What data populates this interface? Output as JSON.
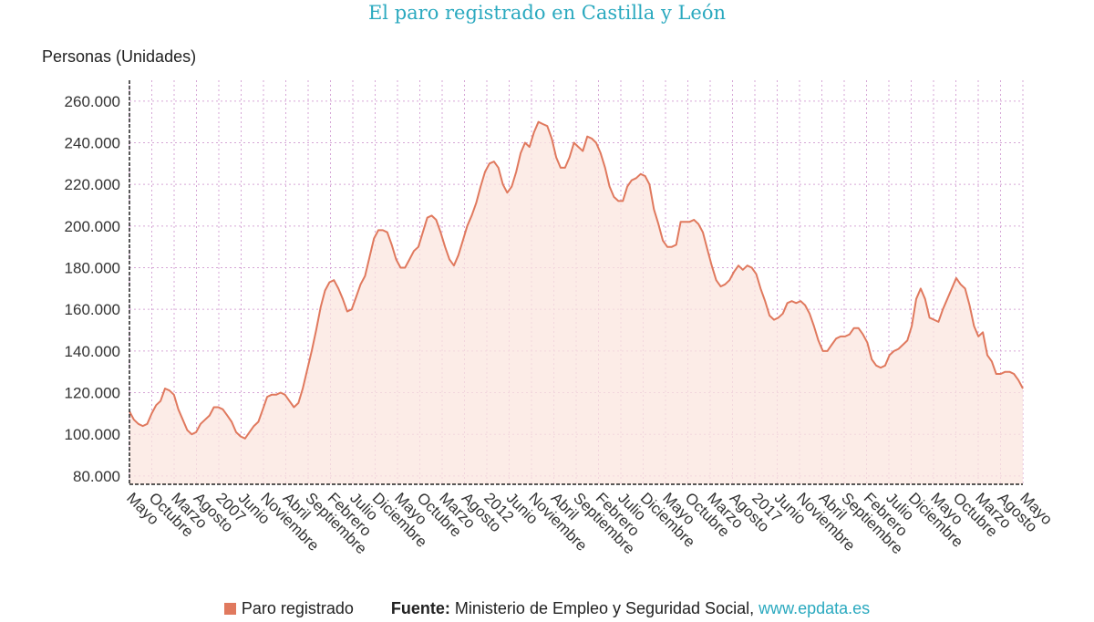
{
  "chart_data": {
    "type": "area",
    "title": "El paro registrado en Castilla y León",
    "ylabel": "Personas (Unidades)",
    "ylim": [
      76000,
      270000
    ],
    "yticks": [
      80000,
      100000,
      120000,
      140000,
      160000,
      180000,
      200000,
      220000,
      240000,
      260000
    ],
    "ytick_labels": [
      "80.000",
      "100.000",
      "120.000",
      "140.000",
      "160.000",
      "180.000",
      "200.000",
      "220.000",
      "240.000",
      "260.000"
    ],
    "x_tick_labels": [
      "Mayo",
      "Octubre",
      "Marzo",
      "Agosto",
      "2007",
      "Junio",
      "Noviembre",
      "Abril",
      "Septiembre",
      "Febrero",
      "Julio",
      "Diciembre",
      "Mayo",
      "Octubre",
      "Marzo",
      "Agosto",
      "2012",
      "Junio",
      "Noviembre",
      "Abril",
      "Septiembre",
      "Febrero",
      "Julio",
      "Diciembre",
      "Mayo",
      "Octubre",
      "Marzo",
      "Agosto",
      "2017",
      "Junio",
      "Noviembre",
      "Abril",
      "Septiembre",
      "Febrero",
      "Julio",
      "Diciembre",
      "Mayo",
      "Octubre",
      "Marzo",
      "Agosto",
      "Mayo"
    ],
    "grid": true,
    "series": [
      {
        "name": "Paro registrado",
        "color": "#e0795e",
        "values": [
          111000,
          107000,
          105000,
          104000,
          105000,
          110000,
          114000,
          116000,
          122000,
          121000,
          119000,
          112000,
          107000,
          102000,
          100000,
          101000,
          105000,
          107000,
          109000,
          113000,
          113000,
          112000,
          109000,
          106000,
          101000,
          99000,
          98000,
          101000,
          104000,
          106000,
          112000,
          118000,
          119000,
          119000,
          120000,
          119000,
          116000,
          113000,
          115000,
          122000,
          131000,
          140000,
          150000,
          161000,
          169000,
          173000,
          174000,
          170000,
          165000,
          159000,
          160000,
          166000,
          172000,
          176000,
          185000,
          194000,
          198000,
          198000,
          197000,
          191000,
          184000,
          180000,
          180000,
          184000,
          188000,
          190000,
          197000,
          204000,
          205000,
          203000,
          197000,
          190000,
          184000,
          181000,
          186000,
          193000,
          200000,
          205000,
          211000,
          219000,
          226000,
          230000,
          231000,
          228000,
          220000,
          216000,
          219000,
          226000,
          235000,
          240000,
          238000,
          245000,
          250000,
          249000,
          248000,
          242000,
          233000,
          228000,
          228000,
          233000,
          240000,
          238000,
          236000,
          243000,
          242000,
          240000,
          235000,
          228000,
          219000,
          214000,
          212000,
          212000,
          219000,
          222000,
          223000,
          225000,
          224000,
          220000,
          208000,
          201000,
          193000,
          190000,
          190000,
          191000,
          202000,
          202000,
          202000,
          203000,
          201000,
          197000,
          189000,
          181000,
          174000,
          171000,
          172000,
          174000,
          178000,
          181000,
          179000,
          181000,
          180000,
          177000,
          170000,
          164000,
          157000,
          155000,
          156000,
          158000,
          163000,
          164000,
          163000,
          164000,
          162000,
          158000,
          152000,
          145000,
          140000,
          140000,
          143000,
          146000,
          147000,
          147000,
          148000,
          151000,
          151000,
          148000,
          144000,
          136000,
          133000,
          132000,
          133000,
          138000,
          140000,
          141000,
          143000,
          145000,
          152000,
          165000,
          170000,
          165000,
          156000,
          155000,
          154000,
          160000,
          165000,
          170000,
          175000,
          172000,
          170000,
          162000,
          152000,
          147000,
          149000,
          138000,
          135000,
          129000,
          129000,
          130000,
          130000,
          129000,
          126000,
          122000
        ]
      }
    ]
  },
  "legend": {
    "label": "Paro registrado"
  },
  "source": {
    "key": "Fuente:",
    "text": "Ministerio de Empleo y Seguridad Social,",
    "link": "www.epdata.es"
  }
}
